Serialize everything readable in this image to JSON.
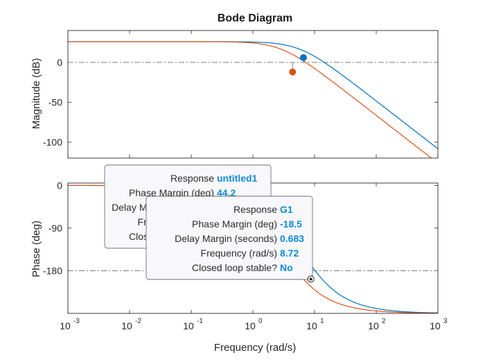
{
  "chart_data": {
    "type": "line",
    "title": "Bode Diagram",
    "xlabel": "Frequency (rad/s)",
    "xscale": "log",
    "xlim": [
      0.001,
      1000
    ],
    "xticks": [
      {
        "base": "10",
        "exp": "-3"
      },
      {
        "base": "10",
        "exp": "-2"
      },
      {
        "base": "10",
        "exp": "-1"
      },
      {
        "base": "10",
        "exp": "0"
      },
      {
        "base": "10",
        "exp": "1"
      },
      {
        "base": "10",
        "exp": "2"
      },
      {
        "base": "10",
        "exp": "3"
      }
    ],
    "magnitude": {
      "ylabel": "Magnitude (dB)",
      "ylim": [
        -120,
        40
      ],
      "yticks": [
        "0",
        "-50",
        "-100"
      ],
      "ytick_values": [
        0,
        -50,
        -100
      ],
      "reference_line": 0
    },
    "phase": {
      "ylabel": "Phase (deg)",
      "ylim": [
        -270,
        5
      ],
      "yticks": [
        "0",
        "-90",
        "-180"
      ],
      "ytick_values": [
        0,
        -90,
        -180
      ],
      "reference_line": -180
    },
    "series": [
      {
        "name": "untitled1",
        "color": "#0072BD",
        "gain_db": 26,
        "poles": [
          4,
          6,
          8
        ],
        "margin_marker_magnitude": {
          "x": 6.6,
          "y": 6
        },
        "margin_marker_phase": {
          "x": 9.6,
          "y": -180
        }
      },
      {
        "name": "G1",
        "color": "#D95319",
        "gain_db": 26,
        "poles": [
          2,
          3,
          4
        ],
        "margin_marker_magnitude": {
          "x": 4.4,
          "y": -12
        },
        "margin_marker_phase": {
          "x": 8.72,
          "y": -180
        }
      }
    ],
    "datatips": [
      {
        "series": "untitled1",
        "lines": [
          {
            "label": "Response",
            "value": "untitled1"
          },
          {
            "label": "Phase Margin (deg)",
            "value": "44.2"
          },
          {
            "label": "Delay Margin (seconds)",
            "value": ""
          },
          {
            "label": "Frequency (rad/s)",
            "value": ""
          },
          {
            "label": "Closed loop stable?",
            "value": ""
          }
        ]
      },
      {
        "series": "G1",
        "lines": [
          {
            "label": "Response",
            "value": "G1"
          },
          {
            "label": "Phase Margin (deg)",
            "value": "-18.5"
          },
          {
            "label": "Delay Margin (seconds)",
            "value": "0.683"
          },
          {
            "label": "Frequency (rad/s)",
            "value": "8.72"
          },
          {
            "label": "Closed loop stable?",
            "value": "No"
          }
        ]
      }
    ]
  }
}
